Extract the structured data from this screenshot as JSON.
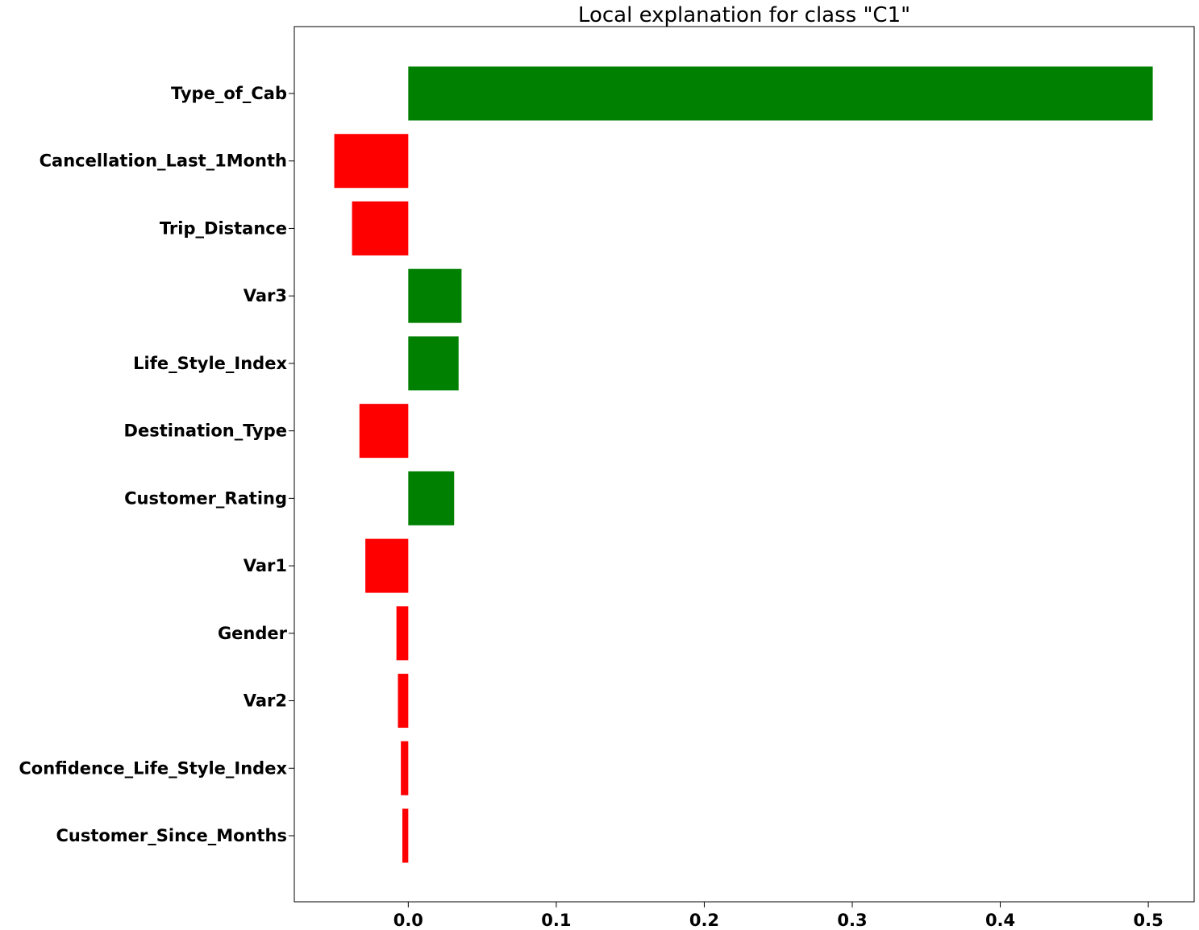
{
  "chart_data": {
    "type": "bar",
    "orientation": "horizontal",
    "title": "Local explanation for class \"C1\"",
    "xlabel": "",
    "ylabel": "",
    "categories": [
      "Type_of_Cab",
      "Cancellation_Last_1Month",
      "Trip_Distance",
      "Var3",
      "Life_Style_Index",
      "Destination_Type",
      "Customer_Rating",
      "Var1",
      "Gender",
      "Var2",
      "Confidence_Life_Style_Index",
      "Customer_Since_Months"
    ],
    "values": [
      0.503,
      -0.05,
      -0.038,
      0.036,
      0.034,
      -0.033,
      0.031,
      -0.029,
      -0.008,
      -0.007,
      -0.005,
      -0.004
    ],
    "xlim": [
      -0.077,
      0.531
    ],
    "xticks": [
      "0.0",
      "0.1",
      "0.2",
      "0.3",
      "0.4",
      "0.5"
    ],
    "xtick_values": [
      0.0,
      0.1,
      0.2,
      0.3,
      0.4,
      0.5
    ],
    "grid": false,
    "legend": "none",
    "colors": {
      "positive": "#008000",
      "negative": "#ff0000"
    }
  }
}
